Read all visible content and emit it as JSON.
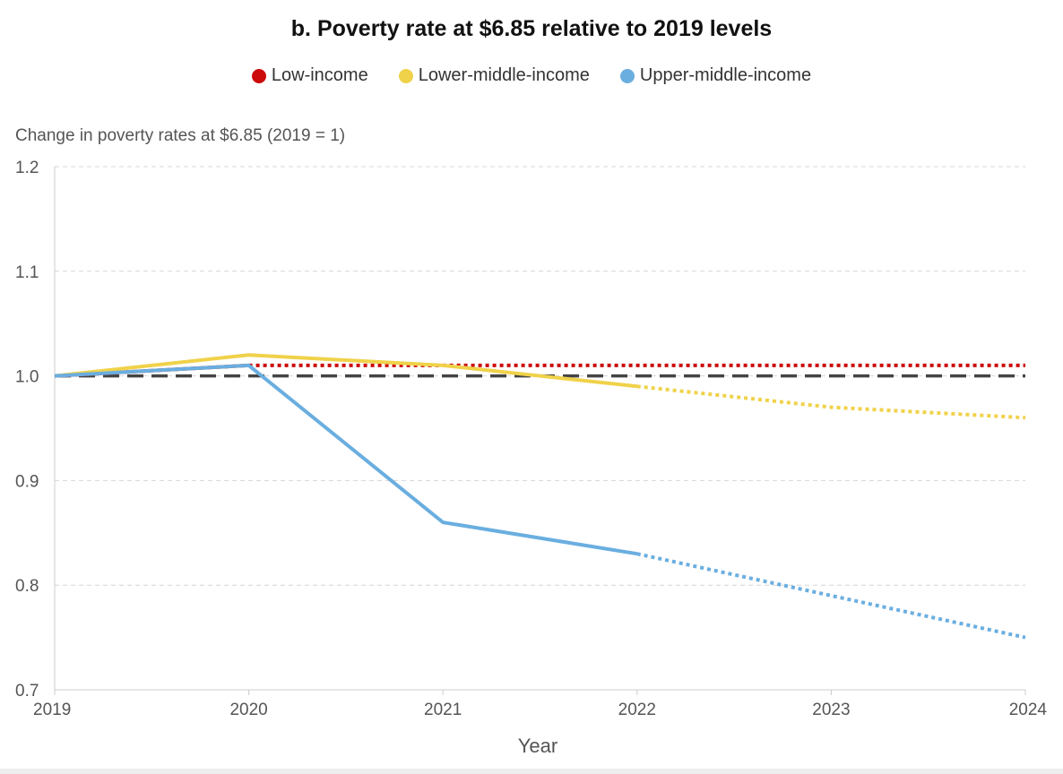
{
  "chart_data": {
    "type": "line",
    "title": "b. Poverty rate at $6.85 relative to 2019 levels",
    "ylabel": "Change in poverty rates at $6.85 (2019 = 1)",
    "xlabel": "Year",
    "x": [
      2019,
      2020,
      2021,
      2022,
      2023,
      2024
    ],
    "x_tick_labels": [
      "2019",
      "2020",
      "2021",
      "2022",
      "2023",
      "2024"
    ],
    "ylim": [
      0.7,
      1.2
    ],
    "y_ticks": [
      0.7,
      0.8,
      0.9,
      1.0,
      1.1,
      1.2
    ],
    "y_tick_labels": [
      "0.7",
      "0.8",
      "0.9",
      "1.0",
      "1.1",
      "1.2"
    ],
    "grid": "horizontal dashed",
    "legend_position": "top-center",
    "reference_line": {
      "y": 1.0,
      "style": "dashed",
      "color": "#444444"
    },
    "projection_starts_at": 2022,
    "series": [
      {
        "name": "Low-income",
        "color": "#cc0a0a",
        "values": [
          1.0,
          1.01,
          1.01,
          1.01,
          1.01,
          1.01
        ],
        "solid_until": 2020
      },
      {
        "name": "Lower-middle-income",
        "color": "#f0d24a",
        "values": [
          1.0,
          1.02,
          1.01,
          0.99,
          0.97,
          0.96
        ],
        "solid_until": 2022
      },
      {
        "name": "Upper-middle-income",
        "color": "#6aaee0",
        "values": [
          1.0,
          1.01,
          0.86,
          0.83,
          0.79,
          0.75
        ],
        "solid_until": 2022
      }
    ]
  }
}
